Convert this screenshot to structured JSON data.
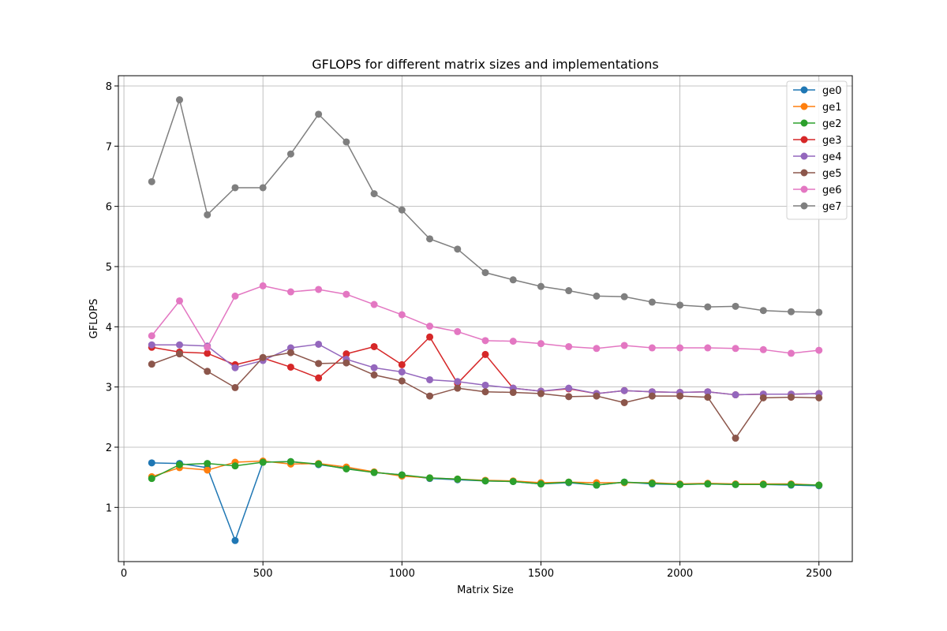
{
  "chart_data": {
    "type": "line",
    "title": "GFLOPS for different matrix sizes and implementations",
    "xlabel": "Matrix Size",
    "ylabel": "GFLOPS",
    "xlim": [
      -20,
      2620
    ],
    "ylim": [
      0.1,
      8.17
    ],
    "xticks": [
      0,
      500,
      1000,
      1500,
      2000,
      2500
    ],
    "yticks": [
      1,
      2,
      3,
      4,
      5,
      6,
      7,
      8
    ],
    "grid": true,
    "legend_position": "top-right",
    "x": [
      100,
      200,
      300,
      400,
      500,
      600,
      700,
      800,
      900,
      1000,
      1100,
      1200,
      1300,
      1400,
      1500,
      1600,
      1700,
      1800,
      1900,
      2000,
      2100,
      2200,
      2300,
      2400,
      2500
    ],
    "series": [
      {
        "name": "ge0",
        "color": "#1f77b4",
        "values": [
          1.74,
          1.73,
          1.66,
          0.45,
          1.75,
          1.76,
          1.71,
          1.65,
          1.58,
          1.54,
          1.48,
          1.46,
          1.44,
          1.43,
          1.39,
          1.41,
          1.37,
          1.42,
          1.39,
          1.38,
          1.39,
          1.38,
          1.38,
          1.37,
          1.36
        ]
      },
      {
        "name": "ge1",
        "color": "#ff7f0e",
        "values": [
          1.51,
          1.66,
          1.62,
          1.75,
          1.77,
          1.72,
          1.73,
          1.67,
          1.59,
          1.52,
          1.49,
          1.47,
          1.45,
          1.44,
          1.41,
          1.42,
          1.41,
          1.41,
          1.41,
          1.39,
          1.4,
          1.39,
          1.39,
          1.39,
          1.37
        ]
      },
      {
        "name": "ge2",
        "color": "#2ca02c",
        "values": [
          1.48,
          1.71,
          1.73,
          1.69,
          1.75,
          1.76,
          1.72,
          1.64,
          1.58,
          1.54,
          1.49,
          1.47,
          1.44,
          1.43,
          1.39,
          1.42,
          1.37,
          1.42,
          1.4,
          1.38,
          1.39,
          1.38,
          1.38,
          1.38,
          1.37
        ]
      },
      {
        "name": "ge3",
        "color": "#d62728",
        "values": [
          3.66,
          3.58,
          3.56,
          3.37,
          3.48,
          3.33,
          3.15,
          3.55,
          3.67,
          3.37,
          3.83,
          3.06,
          3.54,
          2.98,
          2.93,
          2.97,
          2.89,
          2.94,
          2.92,
          2.91,
          2.92,
          2.87,
          2.88,
          2.88,
          2.89
        ]
      },
      {
        "name": "ge4",
        "color": "#9467bd",
        "values": [
          3.7,
          3.7,
          3.68,
          3.32,
          3.44,
          3.65,
          3.71,
          3.46,
          3.32,
          3.25,
          3.12,
          3.09,
          3.03,
          2.98,
          2.93,
          2.98,
          2.89,
          2.94,
          2.92,
          2.91,
          2.92,
          2.87,
          2.88,
          2.88,
          2.89
        ]
      },
      {
        "name": "ge5",
        "color": "#8c564b",
        "values": [
          3.38,
          3.55,
          3.26,
          2.99,
          3.49,
          3.57,
          3.39,
          3.4,
          3.2,
          3.1,
          2.85,
          2.98,
          2.92,
          2.91,
          2.89,
          2.84,
          2.85,
          2.74,
          2.85,
          2.85,
          2.83,
          2.15,
          2.82,
          2.83,
          2.82
        ]
      },
      {
        "name": "ge6",
        "color": "#e377c2",
        "values": [
          3.85,
          4.43,
          3.66,
          4.51,
          4.68,
          4.58,
          4.62,
          4.54,
          4.37,
          4.2,
          4.01,
          3.92,
          3.77,
          3.76,
          3.72,
          3.67,
          3.64,
          3.69,
          3.65,
          3.65,
          3.65,
          3.64,
          3.62,
          3.56,
          3.61
        ]
      },
      {
        "name": "ge7",
        "color": "#7f7f7f",
        "values": [
          6.41,
          7.77,
          5.86,
          6.31,
          6.31,
          6.87,
          7.53,
          7.07,
          6.21,
          5.94,
          5.46,
          5.29,
          4.9,
          4.78,
          4.67,
          4.6,
          4.51,
          4.5,
          4.41,
          4.36,
          4.33,
          4.34,
          4.27,
          4.25,
          4.24
        ]
      }
    ]
  }
}
